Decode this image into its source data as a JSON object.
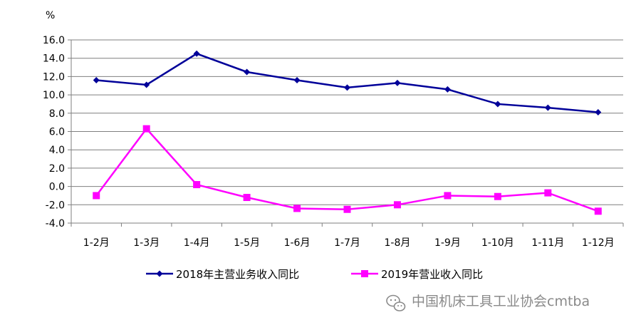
{
  "chart_data": {
    "type": "line",
    "unit_label": "%",
    "categories": [
      "1-2月",
      "1-3月",
      "1-4月",
      "1-5月",
      "1-6月",
      "1-7月",
      "1-8月",
      "1-9月",
      "1-10月",
      "1-11月",
      "1-12月"
    ],
    "ylim": [
      -4.0,
      16.0
    ],
    "y_ticks": [
      "16.0",
      "14.0",
      "12.0",
      "10.0",
      "8.0",
      "6.0",
      "4.0",
      "2.0",
      "0.0",
      "-2.0",
      "-4.0"
    ],
    "y_tick_values": [
      16,
      14,
      12,
      10,
      8,
      6,
      4,
      2,
      0,
      -2,
      -4
    ],
    "grid": true,
    "legend_position": "bottom",
    "series": [
      {
        "name": "2018年主营业务收入同比",
        "color": "#000099",
        "marker": "diamond",
        "values": [
          11.6,
          11.1,
          14.5,
          12.5,
          11.6,
          10.8,
          11.3,
          10.6,
          9.0,
          8.6,
          8.1
        ]
      },
      {
        "name": "2019年营业收入同比",
        "color": "#ff00ff",
        "marker": "square",
        "values": [
          -1.0,
          6.3,
          0.2,
          -1.2,
          -2.4,
          -2.5,
          -2.0,
          -1.0,
          -1.1,
          -0.7,
          -2.7
        ]
      }
    ]
  },
  "watermark": {
    "text": "中国机床工具工业协会cmtba",
    "icon": "wechat-icon"
  }
}
